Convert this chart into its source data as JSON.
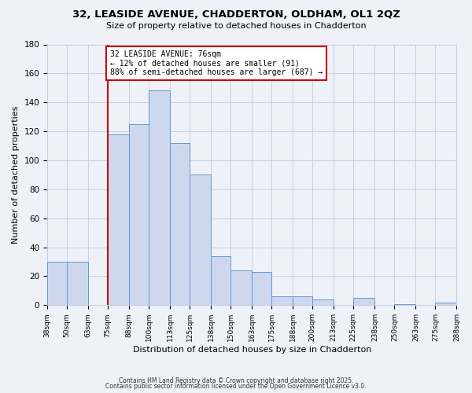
{
  "title": "32, LEASIDE AVENUE, CHADDERTON, OLDHAM, OL1 2QZ",
  "subtitle": "Size of property relative to detached houses in Chadderton",
  "xlabel": "Distribution of detached houses by size in Chadderton",
  "ylabel": "Number of detached properties",
  "bins": [
    38,
    50,
    63,
    75,
    88,
    100,
    113,
    125,
    138,
    150,
    163,
    175,
    188,
    200,
    213,
    225,
    238,
    250,
    263,
    275,
    288
  ],
  "counts": [
    30,
    30,
    0,
    118,
    125,
    148,
    112,
    90,
    34,
    24,
    23,
    6,
    6,
    4,
    0,
    5,
    0,
    1,
    0,
    2
  ],
  "bar_face_color": "#cdd8ee",
  "bar_edge_color": "#6699cc",
  "grid_color": "#c8d0e0",
  "background_color": "#eef1f8",
  "vline_x": 75,
  "vline_color": "#cc0000",
  "annotation_title": "32 LEASIDE AVENUE: 76sqm",
  "annotation_line1": "← 12% of detached houses are smaller (91)",
  "annotation_line2": "88% of semi-detached houses are larger (687) →",
  "annotation_box_color": "#cc0000",
  "ylim": [
    0,
    180
  ],
  "yticks": [
    0,
    20,
    40,
    60,
    80,
    100,
    120,
    140,
    160,
    180
  ],
  "footnote1": "Contains HM Land Registry data © Crown copyright and database right 2025.",
  "footnote2": "Contains public sector information licensed under the Open Government Licence v3.0."
}
